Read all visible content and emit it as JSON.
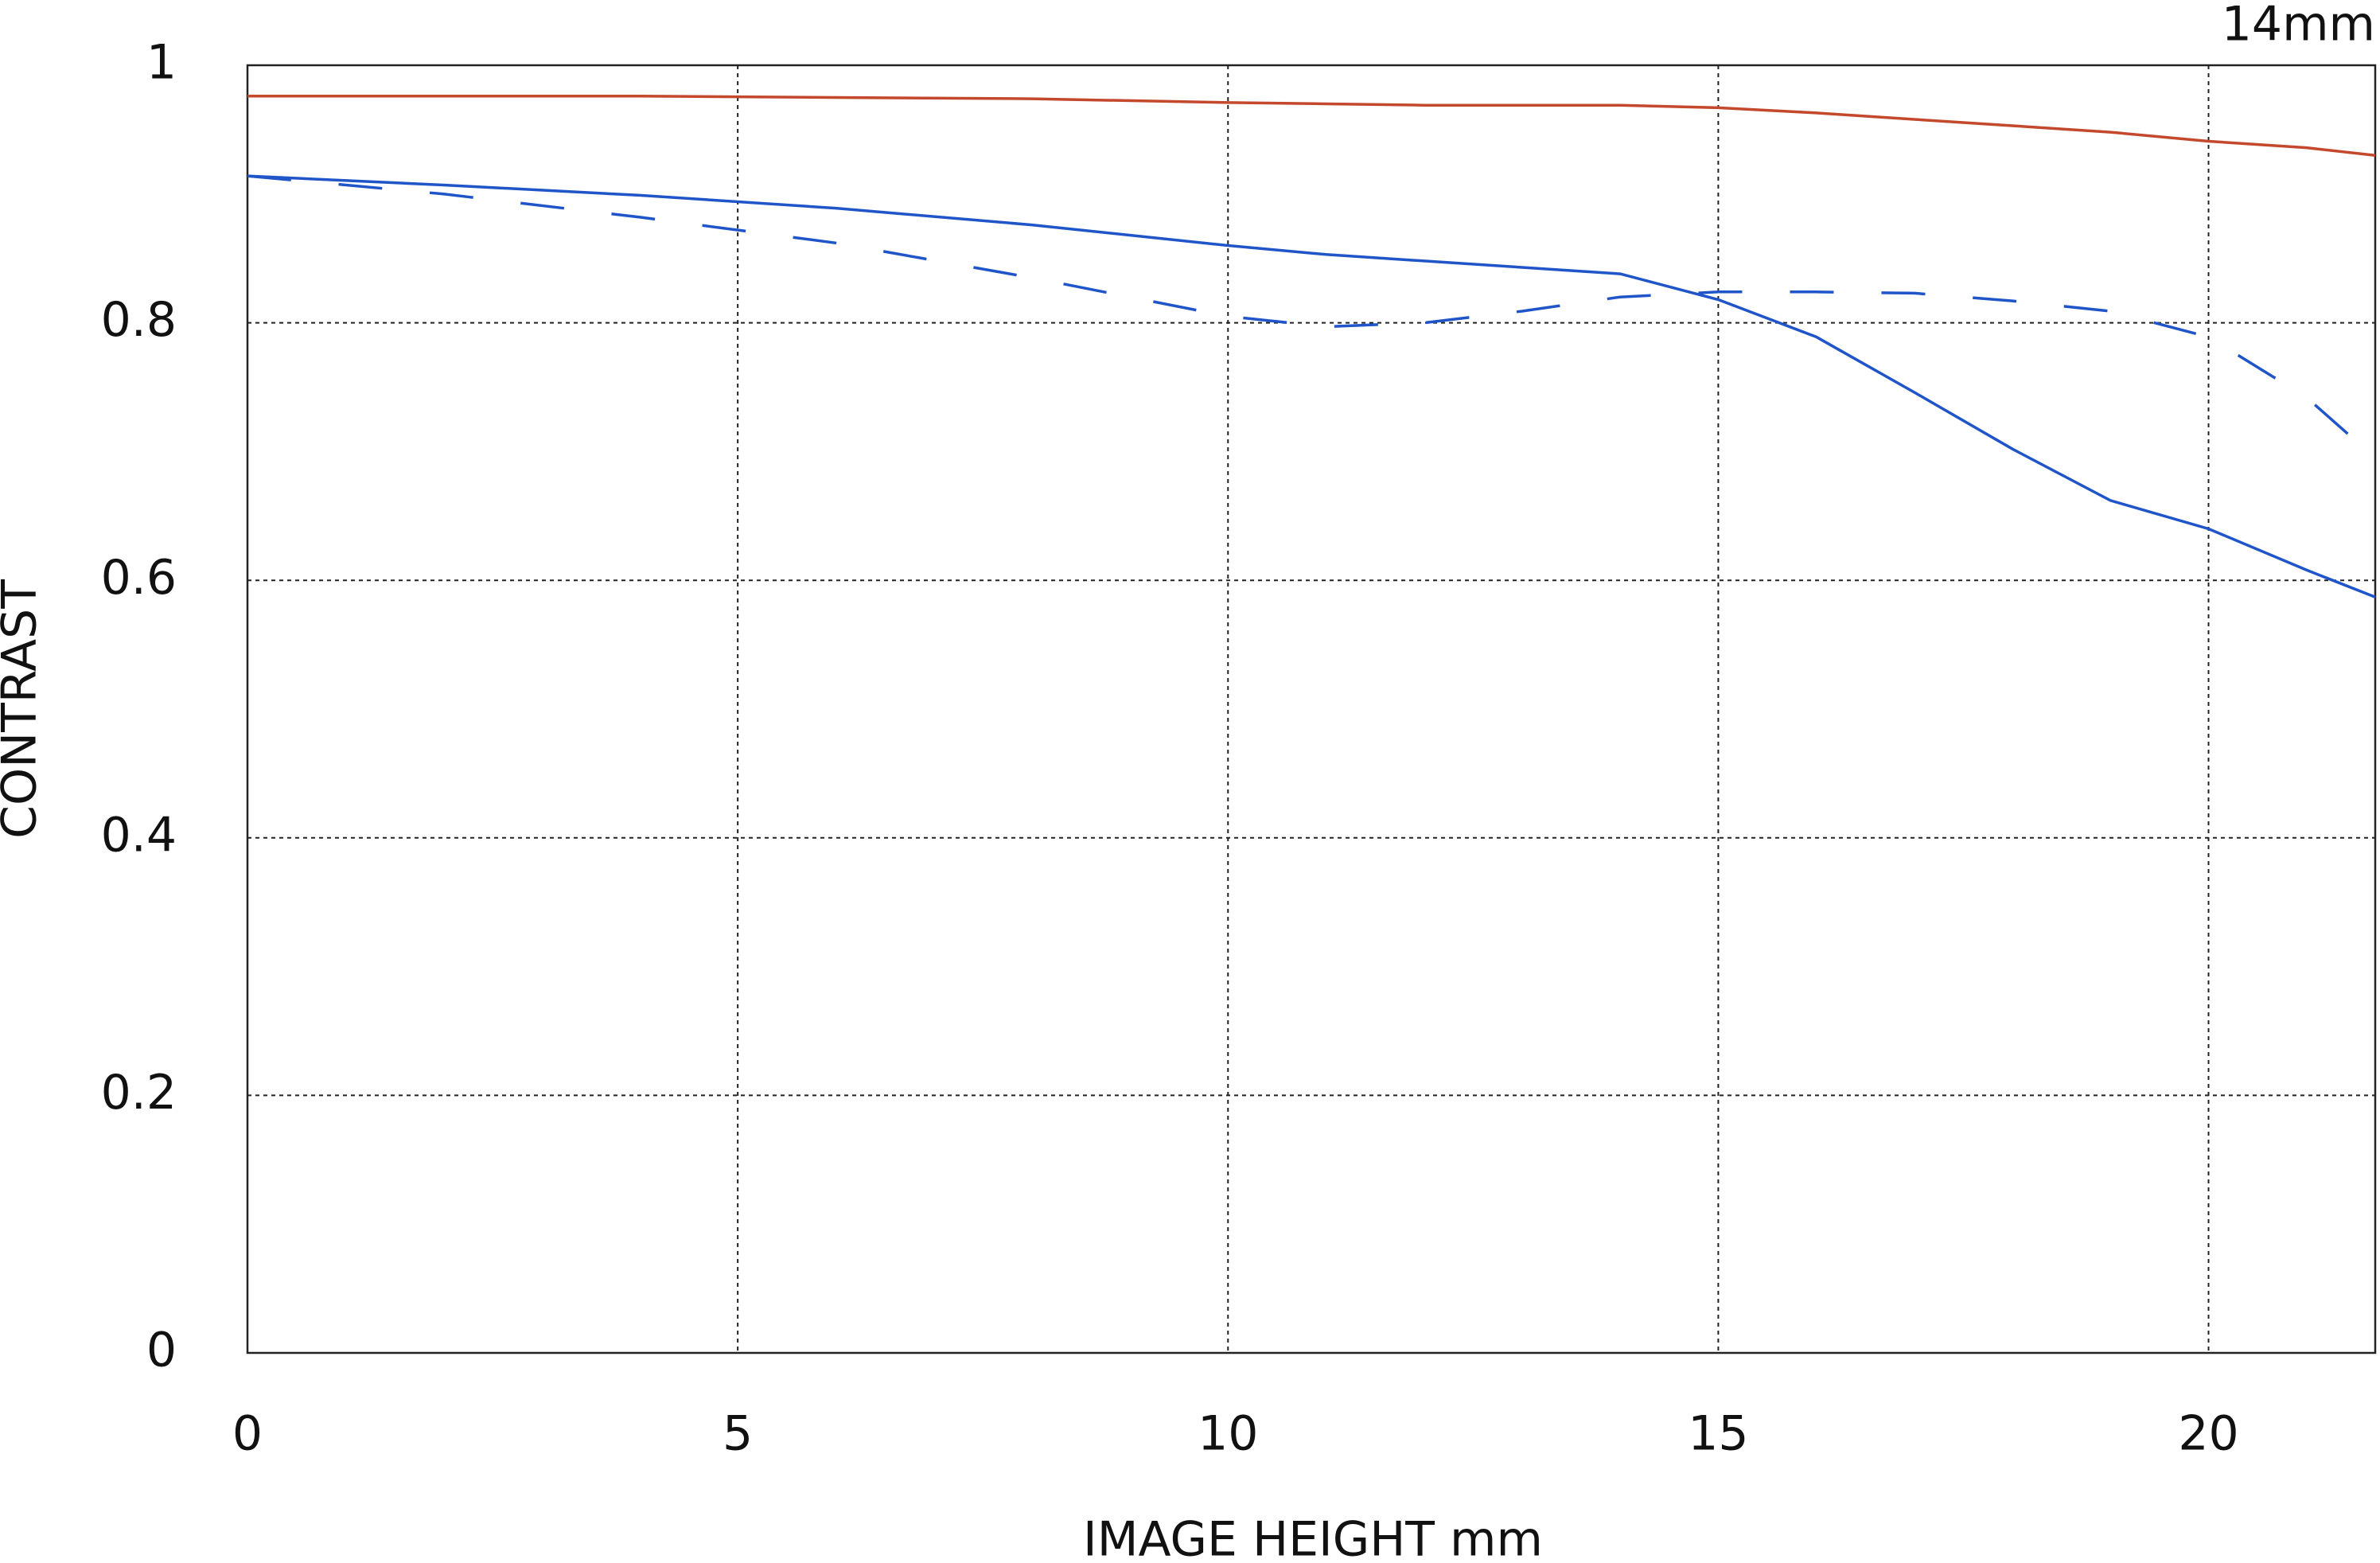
{
  "chart_data": {
    "type": "line",
    "title": "14mm",
    "xlabel": "IMAGE HEIGHT  mm",
    "ylabel": "CONTRAST",
    "x": [
      0,
      2,
      4,
      6,
      8,
      10,
      11,
      12,
      13,
      14,
      15,
      16,
      17,
      18,
      19,
      20,
      21,
      21.7
    ],
    "series": [
      {
        "color": "#c4482c",
        "dash": "solid",
        "values": [
          0.976,
          0.976,
          0.976,
          0.975,
          0.974,
          0.971,
          0.97,
          0.969,
          0.969,
          0.969,
          0.967,
          0.963,
          0.958,
          0.953,
          0.948,
          0.941,
          0.936,
          0.93
        ]
      },
      {
        "color": "#1f55c8",
        "dash": "solid",
        "values": [
          0.914,
          0.907,
          0.899,
          0.889,
          0.876,
          0.86,
          0.853,
          0.848,
          0.843,
          0.838,
          0.818,
          0.789,
          0.746,
          0.702,
          0.662,
          0.64,
          0.608,
          0.587
        ]
      },
      {
        "color": "#1f55c8",
        "dash": "dashed",
        "values": [
          0.914,
          0.9,
          0.882,
          0.862,
          0.835,
          0.805,
          0.797,
          0.8,
          0.809,
          0.82,
          0.824,
          0.824,
          0.823,
          0.817,
          0.809,
          0.789,
          0.742,
          0.695
        ]
      }
    ],
    "xlim": [
      0,
      21.7
    ],
    "xticks": [
      0,
      5,
      10,
      15,
      20
    ],
    "ylim": [
      0,
      1
    ],
    "yticks": [
      0,
      0.2,
      0.4,
      0.6,
      0.8,
      1
    ],
    "grid": true
  }
}
